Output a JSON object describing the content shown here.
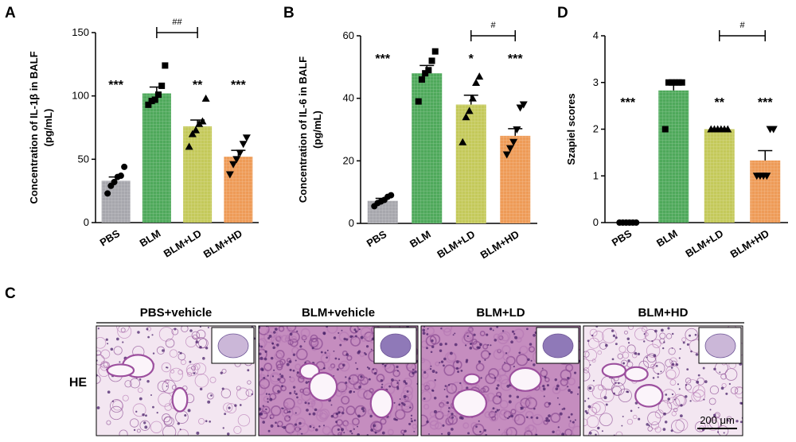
{
  "panel_letters": {
    "a": "A",
    "b": "B",
    "d": "D",
    "c": "C"
  },
  "chart_data": [
    {
      "id": "A",
      "type": "bar",
      "ylabel": "Concentration of IL-1β in BALF\n(pg/mL)",
      "ylim": [
        0,
        150
      ],
      "yticks": [
        0,
        50,
        100,
        150
      ],
      "categories": [
        "PBS",
        "BLM",
        "BLM+LD",
        "BLM+HD"
      ],
      "values": [
        33,
        102,
        76,
        52
      ],
      "sem": [
        3,
        5,
        5,
        5
      ],
      "colors": [
        "#a7a7ad",
        "#4fa95b",
        "#c4c95a",
        "#ee9b57"
      ],
      "markers": [
        "circle",
        "square",
        "triangle",
        "triangle-down"
      ],
      "points": [
        [
          23,
          29,
          32,
          36,
          37,
          44
        ],
        [
          93,
          96,
          97,
          101,
          108,
          124
        ],
        [
          60,
          70,
          73,
          78,
          80,
          98
        ],
        [
          38,
          46,
          50,
          55,
          62,
          67
        ]
      ],
      "annotations": [
        "***",
        "",
        "**",
        "***"
      ],
      "bracket": {
        "from": "BLM",
        "to": "BLM+LD",
        "label": "##"
      }
    },
    {
      "id": "B",
      "type": "bar",
      "ylabel": "Concentration of IL-6 in BALF\n(pg/mL)",
      "ylim": [
        0,
        60
      ],
      "yticks": [
        0,
        20,
        40,
        60
      ],
      "categories": [
        "PBS",
        "BLM",
        "BLM+LD",
        "BLM+HD"
      ],
      "values": [
        7.2,
        48,
        38,
        28
      ],
      "sem": [
        0.8,
        2.5,
        3.0,
        2.3
      ],
      "colors": [
        "#a7a7ad",
        "#4fa95b",
        "#c4c95a",
        "#ee9b57"
      ],
      "markers": [
        "circle",
        "square",
        "triangle",
        "triangle-down"
      ],
      "points": [
        [
          5.5,
          6.5,
          7,
          7.5,
          8.5,
          9
        ],
        [
          39,
          46,
          48,
          49,
          52,
          55
        ],
        [
          26,
          34,
          36,
          40,
          45,
          47
        ],
        [
          22,
          24,
          26,
          30,
          37,
          38
        ]
      ],
      "annotations": [
        "***",
        "",
        "*",
        "***"
      ],
      "bracket": {
        "from": "BLM+LD",
        "to": "BLM+HD",
        "label": "#"
      }
    },
    {
      "id": "D",
      "type": "bar",
      "ylabel": "Szapiel scores",
      "ylim": [
        0,
        4
      ],
      "yticks": [
        0,
        1,
        2,
        3,
        4
      ],
      "categories": [
        "PBS",
        "BLM",
        "BLM+LD",
        "BLM+HD"
      ],
      "values": [
        0,
        2.83,
        2.0,
        1.33
      ],
      "sem": [
        0,
        0.17,
        0,
        0.21
      ],
      "colors": [
        "#a7a7ad",
        "#4fa95b",
        "#c4c95a",
        "#ee9b57"
      ],
      "markers": [
        "circle",
        "square",
        "triangle",
        "triangle-down"
      ],
      "points": [
        [
          0,
          0,
          0,
          0,
          0,
          0
        ],
        [
          2,
          3,
          3,
          3,
          3,
          3
        ],
        [
          2,
          2,
          2,
          2,
          2,
          2
        ],
        [
          1,
          1,
          1,
          1,
          2,
          2
        ]
      ],
      "annotations": [
        "***",
        "",
        "**",
        "***"
      ],
      "bracket": {
        "from": "BLM+LD",
        "to": "BLM+HD",
        "label": "#"
      }
    }
  ],
  "histology": {
    "row_label": "HE",
    "columns": [
      "PBS+vehicle",
      "BLM+vehicle",
      "BLM+LD",
      "BLM+HD"
    ],
    "scale_bar": "200 μm"
  }
}
